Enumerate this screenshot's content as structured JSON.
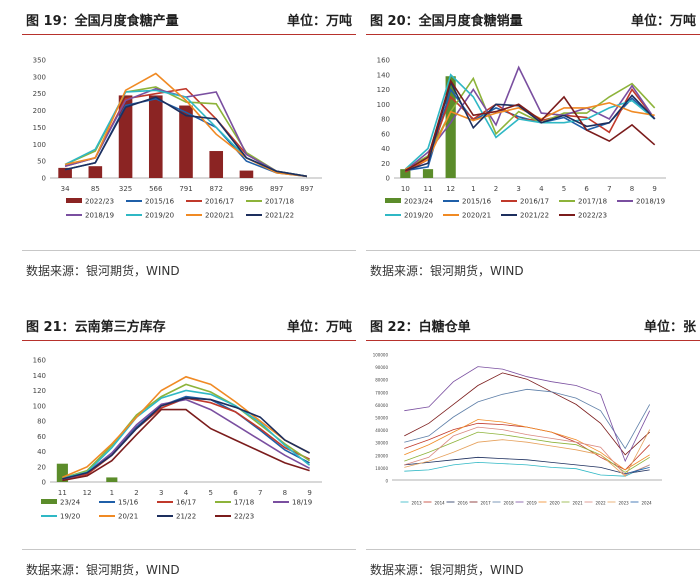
{
  "source_label": "数据来源：银河期货，WIND",
  "panels": [
    {
      "title": "图 19：全国月度食糖产量",
      "unit": "单位：万吨"
    },
    {
      "title": "图 20：全国月度食糖销量",
      "unit": "单位：万吨"
    },
    {
      "title": "图 21：云南第三方库存",
      "unit": "单位：万吨"
    },
    {
      "title": "图 22：白糖仓单",
      "unit": "单位：张"
    }
  ],
  "chart_data": [
    {
      "type": "bar+line",
      "title": "",
      "categories": [
        "34",
        "85",
        "325",
        "566",
        "791",
        "872",
        "896",
        "897",
        "897"
      ],
      "ylim": [
        0,
        350
      ],
      "yticks": [
        0,
        50,
        100,
        150,
        200,
        250,
        300,
        350
      ],
      "bar_series": {
        "name": "2022/23",
        "values": [
          30,
          35,
          245,
          245,
          215,
          80,
          22,
          0,
          0
        ],
        "color": "#8b2423"
      },
      "series": [
        {
          "name": "2015/16",
          "values": [
            25,
            45,
            215,
            235,
            195,
            150,
            50,
            15,
            5
          ],
          "color": "#1f5fa8"
        },
        {
          "name": "2016/17",
          "values": [
            35,
            60,
            235,
            250,
            265,
            175,
            70,
            20,
            5
          ],
          "color": "#c0392b"
        },
        {
          "name": "2017/18",
          "values": [
            40,
            80,
            255,
            270,
            225,
            220,
            75,
            20,
            5
          ],
          "color": "#8db33a"
        },
        {
          "name": "2018/19",
          "values": [
            35,
            60,
            230,
            265,
            240,
            255,
            70,
            20,
            5
          ],
          "color": "#7a4fa0"
        },
        {
          "name": "2019/20",
          "values": [
            40,
            85,
            255,
            260,
            240,
            150,
            60,
            20,
            5
          ],
          "color": "#2fb8c5"
        },
        {
          "name": "2020/21",
          "values": [
            40,
            60,
            260,
            310,
            230,
            130,
            60,
            15,
            5
          ],
          "color": "#f08a24"
        },
        {
          "name": "2021/22",
          "values": [
            25,
            45,
            210,
            240,
            185,
            175,
            60,
            20,
            5
          ],
          "color": "#1d2f5e"
        }
      ],
      "legend": [
        "2022/23",
        "2015/16",
        "2016/17",
        "2017/18",
        "2018/19",
        "2019/20",
        "2020/21",
        "2021/22"
      ]
    },
    {
      "type": "bar+line",
      "title": "",
      "categories": [
        "10",
        "11",
        "12",
        "1",
        "2",
        "3",
        "4",
        "5",
        "6",
        "7",
        "8",
        "9"
      ],
      "ylim": [
        0,
        160
      ],
      "yticks": [
        0,
        20,
        40,
        60,
        80,
        100,
        120,
        140,
        160
      ],
      "bar_series": {
        "name": "2023/24",
        "values": [
          12,
          12,
          138,
          null,
          null,
          null,
          null,
          null,
          null,
          null,
          null,
          null
        ],
        "color": "#5b8c2a"
      },
      "series": [
        {
          "name": "2015/16",
          "values": [
            10,
            15,
            120,
            78,
            95,
            83,
            75,
            82,
            65,
            75,
            108,
            80
          ],
          "color": "#1f5fa8"
        },
        {
          "name": "2016/17",
          "values": [
            8,
            25,
            110,
            80,
            100,
            80,
            78,
            85,
            82,
            62,
            120,
            80
          ],
          "color": "#c0392b"
        },
        {
          "name": "2017/18",
          "values": [
            12,
            30,
            90,
            135,
            60,
            90,
            75,
            88,
            88,
            110,
            128,
            95
          ],
          "color": "#8db33a"
        },
        {
          "name": "2018/19",
          "values": [
            10,
            35,
            75,
            120,
            72,
            150,
            88,
            85,
            95,
            80,
            125,
            80
          ],
          "color": "#7a4fa0"
        },
        {
          "name": "2019/20",
          "values": [
            12,
            40,
            140,
            110,
            55,
            80,
            75,
            75,
            80,
            95,
            105,
            80
          ],
          "color": "#2fb8c5"
        },
        {
          "name": "2020/21",
          "values": [
            12,
            25,
            90,
            78,
            88,
            95,
            80,
            95,
            95,
            102,
            90,
            85
          ],
          "color": "#f08a24"
        },
        {
          "name": "2021/22",
          "values": [
            10,
            20,
            130,
            68,
            100,
            98,
            75,
            85,
            70,
            75,
            112,
            80
          ],
          "color": "#1d2f5e"
        },
        {
          "name": "2022/23",
          "values": [
            10,
            28,
            132,
            85,
            90,
            100,
            78,
            110,
            65,
            50,
            72,
            45
          ],
          "color": "#7b1c1c"
        }
      ],
      "legend": [
        "2023/24",
        "2015/16",
        "2016/17",
        "2017/18",
        "2018/19",
        "2019/20",
        "2020/21",
        "2021/22",
        "2022/23"
      ]
    },
    {
      "type": "bar+line",
      "title": "",
      "categories": [
        "11",
        "12",
        "1",
        "2",
        "3",
        "4",
        "5",
        "6",
        "7",
        "8",
        "9"
      ],
      "ylim": [
        0,
        160
      ],
      "yticks": [
        0,
        20,
        40,
        60,
        80,
        100,
        120,
        140,
        160
      ],
      "bar_series": {
        "name": "23/24",
        "values": [
          24,
          0,
          6,
          null,
          null,
          null,
          null,
          null,
          null,
          null,
          null
        ],
        "color": "#5b8c2a"
      },
      "series": [
        {
          "name": "15/16",
          "values": [
            5,
            12,
            38,
            72,
            100,
            112,
            108,
            92,
            68,
            42,
            25
          ],
          "color": "#1f5fa8"
        },
        {
          "name": "16/17",
          "values": [
            3,
            10,
            35,
            70,
            97,
            110,
            104,
            92,
            70,
            45,
            30
          ],
          "color": "#c0392b"
        },
        {
          "name": "17/18",
          "values": [
            5,
            15,
            48,
            88,
            112,
            128,
            118,
            100,
            75,
            50,
            28
          ],
          "color": "#8db33a"
        },
        {
          "name": "18/19",
          "values": [
            3,
            12,
            38,
            75,
            102,
            108,
            95,
            75,
            55,
            35,
            18
          ],
          "color": "#7a4fa0"
        },
        {
          "name": "19/20",
          "values": [
            5,
            13,
            45,
            85,
            110,
            120,
            115,
            100,
            78,
            48,
            22
          ],
          "color": "#2fb8c5"
        },
        {
          "name": "20/21",
          "values": [
            6,
            20,
            50,
            85,
            120,
            138,
            128,
            105,
            80,
            55,
            38
          ],
          "color": "#f08a24"
        },
        {
          "name": "21/22",
          "values": [
            4,
            12,
            35,
            70,
            100,
            110,
            108,
            98,
            85,
            55,
            38
          ],
          "color": "#1d2f5e"
        },
        {
          "name": "22/23",
          "values": [
            2,
            8,
            28,
            62,
            95,
            95,
            70,
            55,
            40,
            25,
            15
          ],
          "color": "#7b1c1c"
        }
      ],
      "legend": [
        "23/24",
        "15/16",
        "16/17",
        "17/18",
        "18/19",
        "19/20",
        "20/21",
        "21/22",
        "22/23"
      ]
    },
    {
      "type": "line",
      "title": "",
      "ylim": [
        0,
        100000
      ],
      "yticks": [
        0,
        10000,
        20000,
        30000,
        40000,
        50000,
        60000,
        70000,
        80000,
        90000,
        100000
      ],
      "series": [
        {
          "name": "2013",
          "values": [
            7000,
            8000,
            12000,
            14000,
            13000,
            12000,
            10000,
            9000,
            4000,
            3000,
            12000
          ],
          "color": "#2fb8c5"
        },
        {
          "name": "2014",
          "values": [
            25000,
            32000,
            40000,
            45000,
            44000,
            42000,
            38000,
            30000,
            18000,
            8000,
            28000
          ],
          "color": "#c0392b"
        },
        {
          "name": "2016",
          "values": [
            12000,
            14000,
            16000,
            18000,
            17000,
            16000,
            14000,
            12000,
            10000,
            5000,
            8000
          ],
          "color": "#1d2f5e"
        },
        {
          "name": "2017",
          "values": [
            35000,
            45000,
            60000,
            75000,
            85000,
            80000,
            70000,
            60000,
            45000,
            20000,
            38000
          ],
          "color": "#7b1c1c"
        },
        {
          "name": "2018",
          "values": [
            30000,
            35000,
            50000,
            62000,
            68000,
            72000,
            70000,
            65000,
            55000,
            25000,
            60000
          ],
          "color": "#5e7fa8"
        },
        {
          "name": "2019",
          "values": [
            55000,
            58000,
            78000,
            90000,
            88000,
            82000,
            78000,
            75000,
            68000,
            15000,
            55000
          ],
          "color": "#7a4fa0"
        },
        {
          "name": "2020",
          "values": [
            20000,
            28000,
            38000,
            48000,
            46000,
            42000,
            38000,
            32000,
            22000,
            8000,
            20000
          ],
          "color": "#f08a24"
        },
        {
          "name": "2021",
          "values": [
            15000,
            22000,
            30000,
            38000,
            36000,
            33000,
            30000,
            28000,
            20000,
            6000,
            18000
          ],
          "color": "#8db33a"
        },
        {
          "name": "2022",
          "values": [
            12000,
            18000,
            35000,
            42000,
            40000,
            36000,
            33000,
            30000,
            26000,
            4000,
            12000
          ],
          "color": "#d98880"
        },
        {
          "name": "2023",
          "values": [
            10000,
            15000,
            22000,
            30000,
            32000,
            30000,
            27000,
            24000,
            20000,
            3000,
            40000
          ],
          "color": "#e6a15c"
        },
        {
          "name": "2024",
          "values": [
            null,
            null,
            null,
            null,
            null,
            null,
            null,
            null,
            null,
            5000,
            10000
          ],
          "color": "#1f5fa8"
        }
      ],
      "legend": [
        "2013",
        "2014",
        "2016",
        "2017",
        "2018",
        "2019",
        "2020",
        "2021",
        "2022",
        "2023",
        "2024"
      ]
    }
  ]
}
